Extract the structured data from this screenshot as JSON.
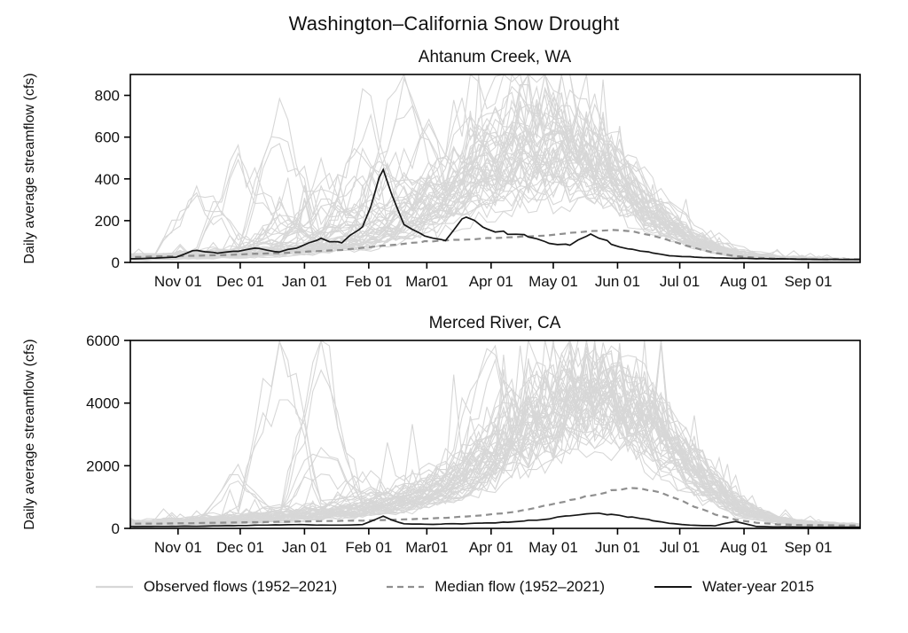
{
  "page": {
    "title": "Washington–California Snow Drought"
  },
  "colors": {
    "observed": "#d7d7d7",
    "median": "#8f8f8f",
    "wy2015": "#151515",
    "axis": "#000000"
  },
  "legend": {
    "items": [
      {
        "id": "observed",
        "label": "Observed flows (1952–2021)"
      },
      {
        "id": "median",
        "label": "Median flow (1952–2021)"
      },
      {
        "id": "wy2015",
        "label": "Water-year 2015"
      }
    ]
  },
  "chart_data": [
    {
      "type": "line",
      "title": "Ahtanum Creek, WA",
      "ylabel": "Daily average streamflow (cfs)",
      "ylim": [
        0,
        900
      ],
      "yticks": [
        0,
        200,
        400,
        600,
        800
      ],
      "xlim_days": [
        8,
        360
      ],
      "x_ticks": [
        {
          "day": 31,
          "label": "Nov 01"
        },
        {
          "day": 61,
          "label": "Dec 01"
        },
        {
          "day": 92,
          "label": "Jan 01"
        },
        {
          "day": 123,
          "label": "Feb 01"
        },
        {
          "day": 151,
          "label": "Mar01"
        },
        {
          "day": 182,
          "label": "Apr 01"
        },
        {
          "day": 212,
          "label": "May 01"
        },
        {
          "day": 243,
          "label": "Jun 01"
        },
        {
          "day": 273,
          "label": "Jul 01"
        },
        {
          "day": 304,
          "label": "Aug 01"
        },
        {
          "day": 335,
          "label": "Sep 01"
        }
      ],
      "series": {
        "median": {
          "name": "Median flow (1952–2021)",
          "sample_interval_days": 10,
          "values": [
            25,
            26,
            28,
            30,
            32,
            35,
            38,
            42,
            45,
            50,
            55,
            60,
            70,
            80,
            90,
            100,
            105,
            110,
            115,
            120,
            125,
            130,
            140,
            150,
            155,
            150,
            130,
            100,
            70,
            45,
            30,
            22,
            18,
            16,
            15,
            15,
            15
          ]
        },
        "wy2015": {
          "name": "Water-year 2015",
          "sample_interval_days": 10,
          "values": [
            15,
            18,
            20,
            25,
            60,
            45,
            55,
            70,
            50,
            75,
            110,
            95,
            170,
            440,
            185,
            120,
            110,
            230,
            155,
            140,
            125,
            95,
            80,
            140,
            90,
            60,
            45,
            30,
            25,
            22,
            20,
            18,
            17,
            16,
            15,
            15,
            14
          ]
        },
        "observed": {
          "name": "Observed flows (1952–2021)",
          "sample_interval_days": 20,
          "traces": [
            [
              20,
              25,
              30,
              40,
              60,
              80,
              120,
              200,
              300,
              420,
              500,
              560,
              520,
              340,
              170,
              70,
              28,
              18,
              15
            ],
            [
              15,
              20,
              25,
              35,
              200,
              90,
              60,
              150,
              250,
              380,
              430,
              420,
              300,
              160,
              80,
              32,
              20,
              15,
              12
            ],
            [
              30,
              40,
              350,
              120,
              80,
              300,
              150,
              220,
              400,
              600,
              700,
              680,
              480,
              260,
              110,
              42,
              25,
              20,
              18
            ],
            [
              10,
              15,
              20,
              25,
              30,
              50,
              80,
              120,
              180,
              250,
              320,
              360,
              320,
              190,
              85,
              32,
              16,
              10,
              8
            ],
            [
              25,
              30,
              60,
              500,
              200,
              100,
              450,
              300,
              350,
              500,
              620,
              580,
              400,
              210,
              92,
              36,
              20,
              15,
              12
            ],
            [
              20,
              25,
              35,
              45,
              70,
              120,
              250,
              880,
              400,
              700,
              820,
              780,
              540,
              280,
              115,
              42,
              22,
              16,
              14
            ],
            [
              12,
              18,
              22,
              30,
              40,
              60,
              90,
              140,
              220,
              330,
              400,
              430,
              370,
              210,
              92,
              36,
              18,
              12,
              10
            ],
            [
              30,
              35,
              45,
              60,
              760,
              140,
              700,
              350,
              300,
              450,
              520,
              500,
              360,
              190,
              84,
              33,
              20,
              15,
              13
            ],
            [
              18,
              22,
              28,
              38,
              55,
              85,
              130,
              210,
              320,
              480,
              560,
              600,
              540,
              310,
              135,
              52,
              24,
              17,
              14
            ],
            [
              22,
              28,
              40,
              55,
              80,
              400,
              200,
              280,
              420,
              560,
              640,
              600,
              420,
              230,
              98,
              39,
              21,
              15,
              12
            ],
            [
              15,
              20,
              26,
              34,
              48,
              70,
              110,
              170,
              260,
              380,
              460,
              500,
              440,
              250,
              108,
              41,
              20,
              14,
              11
            ],
            [
              28,
              34,
              50,
              70,
              110,
              180,
              300,
              450,
              600,
              800,
              860,
              740,
              490,
              250,
              104,
              39,
              22,
              16,
              13
            ],
            [
              14,
              18,
              24,
              32,
              44,
              64,
              100,
              160,
              240,
              350,
              420,
              460,
              400,
              220,
              98,
              37,
              19,
              13,
              10
            ],
            [
              20,
              26,
              36,
              48,
              250,
              110,
              170,
              260,
              380,
              520,
              600,
              560,
              390,
              205,
              90,
              35,
              19,
              14,
              11
            ],
            [
              16,
              21,
              28,
              38,
              54,
              80,
              125,
              195,
              290,
              420,
              500,
              540,
              480,
              270,
              118,
              45,
              22,
              15,
              12
            ],
            [
              24,
              30,
              42,
              58,
              86,
              130,
              210,
              320,
              460,
              620,
              720,
              680,
              460,
              240,
              100,
              38,
              21,
              15,
              12
            ]
          ]
        }
      }
    },
    {
      "type": "line",
      "title": "Merced River, CA",
      "ylabel": "Daily average streamflow (cfs)",
      "ylim": [
        0,
        6000
      ],
      "yticks": [
        0,
        2000,
        4000,
        6000
      ],
      "xlim_days": [
        8,
        360
      ],
      "x_ticks": [
        {
          "day": 31,
          "label": "Nov 01"
        },
        {
          "day": 61,
          "label": "Dec 01"
        },
        {
          "day": 92,
          "label": "Jan 01"
        },
        {
          "day": 123,
          "label": "Feb 01"
        },
        {
          "day": 151,
          "label": "Mar01"
        },
        {
          "day": 182,
          "label": "Apr 01"
        },
        {
          "day": 212,
          "label": "May 01"
        },
        {
          "day": 243,
          "label": "Jun 01"
        },
        {
          "day": 273,
          "label": "Jul 01"
        },
        {
          "day": 304,
          "label": "Aug 01"
        },
        {
          "day": 335,
          "label": "Sep 01"
        }
      ],
      "series": {
        "median": {
          "name": "Median flow (1952–2021)",
          "sample_interval_days": 10,
          "values": [
            150,
            150,
            150,
            160,
            170,
            180,
            190,
            200,
            210,
            220,
            230,
            240,
            250,
            270,
            290,
            310,
            340,
            380,
            430,
            500,
            600,
            750,
            900,
            1050,
            1200,
            1280,
            1200,
            1000,
            700,
            450,
            280,
            180,
            130,
            110,
            100,
            95,
            90
          ]
        },
        "wy2015": {
          "name": "Water-year 2015",
          "sample_interval_days": 10,
          "values": [
            60,
            60,
            60,
            65,
            70,
            80,
            90,
            100,
            110,
            120,
            110,
            100,
            120,
            380,
            150,
            130,
            140,
            150,
            170,
            200,
            250,
            300,
            420,
            480,
            450,
            350,
            250,
            150,
            100,
            80,
            230,
            60,
            50,
            45,
            40,
            40,
            40
          ]
        },
        "observed": {
          "name": "Observed flows (1952–2021)",
          "sample_interval_days": 20,
          "traces": [
            [
              200,
              250,
              300,
              400,
              600,
              500,
              600,
              800,
              1200,
              2000,
              3000,
              3600,
              3800,
              3200,
              1800,
              700,
              250,
              150,
              120
            ],
            [
              150,
              180,
              220,
              1800,
              400,
              350,
              500,
              700,
              1000,
              1700,
              2600,
              3200,
              3600,
              3000,
              1700,
              650,
              240,
              140,
              110
            ],
            [
              180,
              220,
              300,
              600,
              5900,
              800,
              700,
              900,
              1400,
              2300,
              3400,
              4100,
              4300,
              3400,
              1900,
              750,
              260,
              150,
              115
            ],
            [
              120,
              140,
              170,
              220,
              300,
              400,
              550,
              750,
              1100,
              1900,
              2900,
              3500,
              3600,
              2800,
              1500,
              580,
              220,
              130,
              100
            ],
            [
              160,
              200,
              260,
              350,
              450,
              5500,
              800,
              1000,
              1500,
              2500,
              3700,
              4400,
              4600,
              3700,
              2100,
              850,
              300,
              165,
              125
            ],
            [
              140,
              170,
              210,
              280,
              380,
              520,
              700,
              950,
              1400,
              2400,
              3500,
              4200,
              4400,
              3500,
              2000,
              800,
              280,
              150,
              112
            ],
            [
              110,
              130,
              160,
              200,
              270,
              360,
              480,
              650,
              950,
              1600,
              2500,
              3100,
              3200,
              2500,
              1300,
              500,
              190,
              115,
              90
            ],
            [
              170,
              210,
              270,
              360,
              500,
              2500,
              900,
              1200,
              1700,
              5600,
              4000,
              4700,
              4800,
              3900,
              2300,
              950,
              330,
              175,
              130
            ],
            [
              130,
              160,
              200,
              260,
              350,
              470,
              640,
              870,
              1300,
              2200,
              3300,
              4000,
              4200,
              3300,
              1850,
              730,
              255,
              145,
              110
            ],
            [
              150,
              190,
              240,
              320,
              440,
              600,
              800,
              1100,
              1600,
              2700,
              3900,
              4600,
              4800,
              3800,
              2200,
              900,
              310,
              170,
              128
            ],
            [
              100,
              120,
              150,
              190,
              250,
              340,
              450,
              620,
              900,
              1500,
              2300,
              2900,
              3000,
              2300,
              1200,
              460,
              180,
              110,
              88
            ],
            [
              190,
              240,
              310,
              420,
              580,
              800,
              1050,
              1400,
              2000,
              3200,
              4500,
              5000,
              4900,
              3900,
              2300,
              950,
              330,
              178,
              132
            ],
            [
              120,
              145,
              180,
              235,
              320,
              430,
              580,
              790,
              1150,
              1950,
              3000,
              3600,
              3700,
              2900,
              1550,
              600,
              225,
              132,
              100
            ],
            [
              160,
              200,
              255,
              340,
              470,
              640,
              1500,
              1150,
              1700,
              2800,
              4100,
              4800,
              4900,
              3900,
              2250,
              920,
              320,
              172,
              128
            ],
            [
              135,
              165,
              205,
              270,
              365,
              495,
              665,
              900,
              1330,
              2250,
              3400,
              4100,
              4300,
              3400,
              1900,
              760,
              265,
              148,
              112
            ],
            [
              145,
              180,
              230,
              305,
              415,
              565,
              760,
              1030,
              1520,
              2550,
              3750,
              4500,
              4700,
              3700,
              2150,
              880,
              300,
              162,
              122
            ]
          ]
        }
      }
    }
  ]
}
